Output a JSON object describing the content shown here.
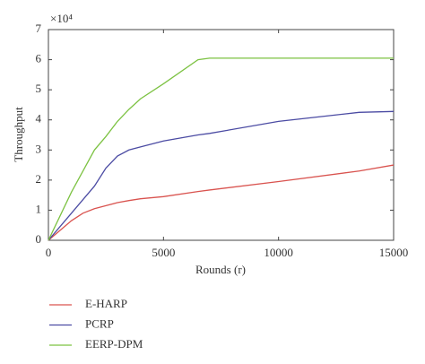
{
  "chart_data": {
    "type": "line",
    "x_label": "Rounds (r)",
    "y_label": "Throughput",
    "y_multiplier": "×10⁴",
    "x": [
      0,
      1000,
      1500,
      2000,
      2500,
      3000,
      3500,
      4000,
      5000,
      6500,
      7000,
      10000,
      13500,
      15000
    ],
    "series": [
      {
        "name": "E-HARP",
        "color": "#d9534f",
        "values": [
          0,
          0.65,
          0.9,
          1.05,
          1.15,
          1.25,
          1.32,
          1.38,
          1.45,
          1.62,
          1.67,
          1.95,
          2.3,
          2.5
        ]
      },
      {
        "name": "PCRP",
        "color": "#4b4ba3",
        "values": [
          0,
          0.9,
          1.35,
          1.8,
          2.4,
          2.8,
          3.0,
          3.1,
          3.3,
          3.5,
          3.55,
          3.95,
          4.25,
          4.28
        ]
      },
      {
        "name": "EERP-DPM",
        "color": "#7cc242",
        "values": [
          0,
          1.6,
          2.3,
          3.0,
          3.45,
          3.95,
          4.35,
          4.7,
          5.2,
          6.0,
          6.05,
          6.05,
          6.05,
          6.05
        ]
      }
    ],
    "xlim": [
      0,
      15000
    ],
    "xticks": [
      0,
      5000,
      10000,
      15000
    ],
    "ylim": [
      0,
      7
    ],
    "yticks": [
      0,
      1,
      2,
      3,
      4,
      5,
      6,
      7
    ],
    "legend": "bottom"
  }
}
